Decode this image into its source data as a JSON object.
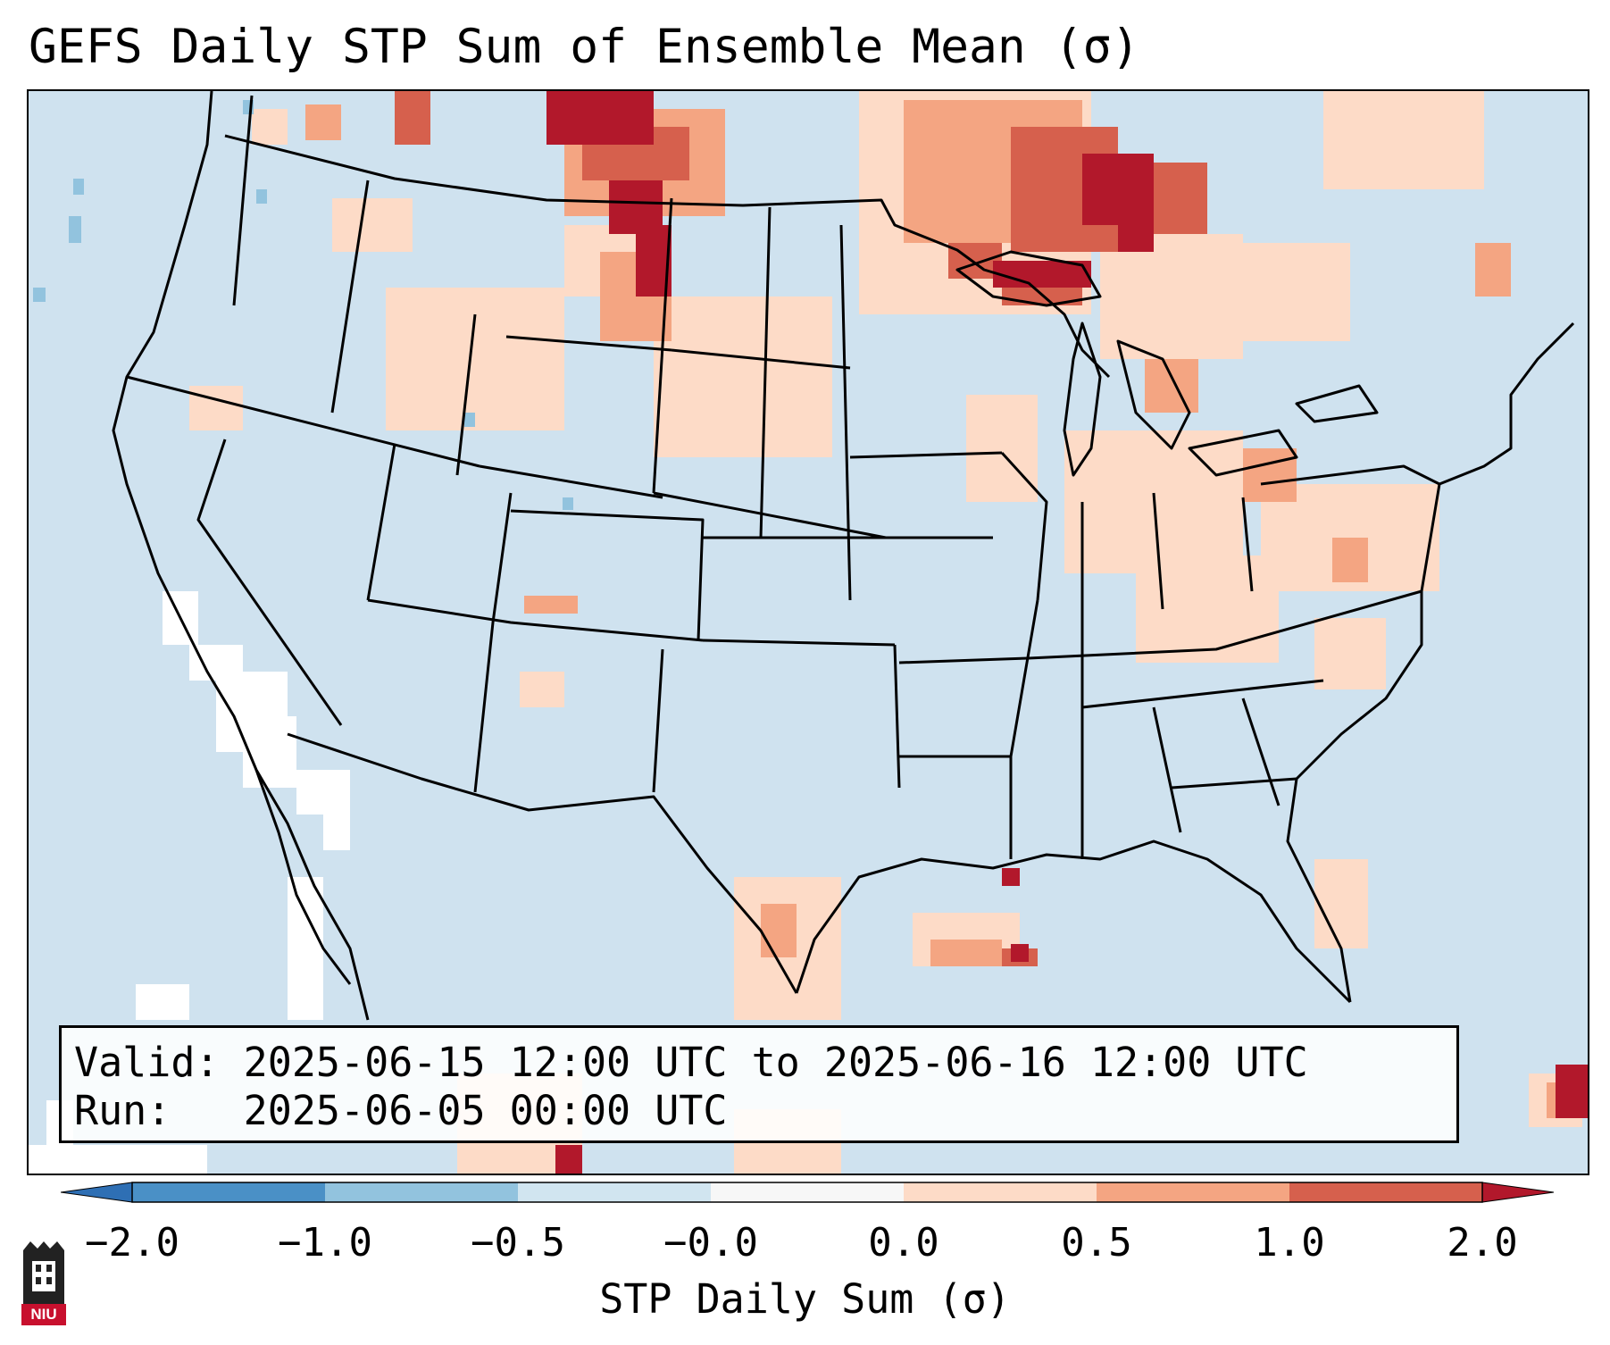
{
  "title": "GEFS Daily STP Sum of Ensemble Mean (σ)",
  "map": {
    "projection": "Lambert Conformal",
    "region": "CONUS",
    "background_color": "#cfe2ef",
    "line_color": "#000000"
  },
  "info_box": {
    "valid_line": "Valid: 2025-06-15 12:00 UTC to 2025-06-16 12:00 UTC",
    "run_line": "Run:   2025-06-05 00:00 UTC"
  },
  "colorbar": {
    "label": "STP Daily Sum (σ)",
    "ticks": [
      "−2.0",
      "−1.0",
      "−0.5",
      "−0.0",
      "0.0",
      "0.5",
      "1.0",
      "2.0"
    ],
    "bins": [
      {
        "range": "< -2.0",
        "color": "#2e6fb4"
      },
      {
        "range": "-2.0 to -1.0",
        "color": "#4a90c6"
      },
      {
        "range": "-1.0 to -0.5",
        "color": "#92c3de"
      },
      {
        "range": "-0.5 to -0.0",
        "color": "#d1e5f0"
      },
      {
        "range": "-0.0 to 0.0",
        "color": "#f7f7f7"
      },
      {
        "range": "0.0 to 0.5",
        "color": "#fddbc7"
      },
      {
        "range": "0.5 to 1.0",
        "color": "#f4a582"
      },
      {
        "range": "1.0 to 2.0",
        "color": "#d6604d"
      },
      {
        "range": "> 2.0",
        "color": "#b2182b"
      }
    ]
  },
  "logo": {
    "text": "NIU",
    "color": "#c8102e"
  }
}
